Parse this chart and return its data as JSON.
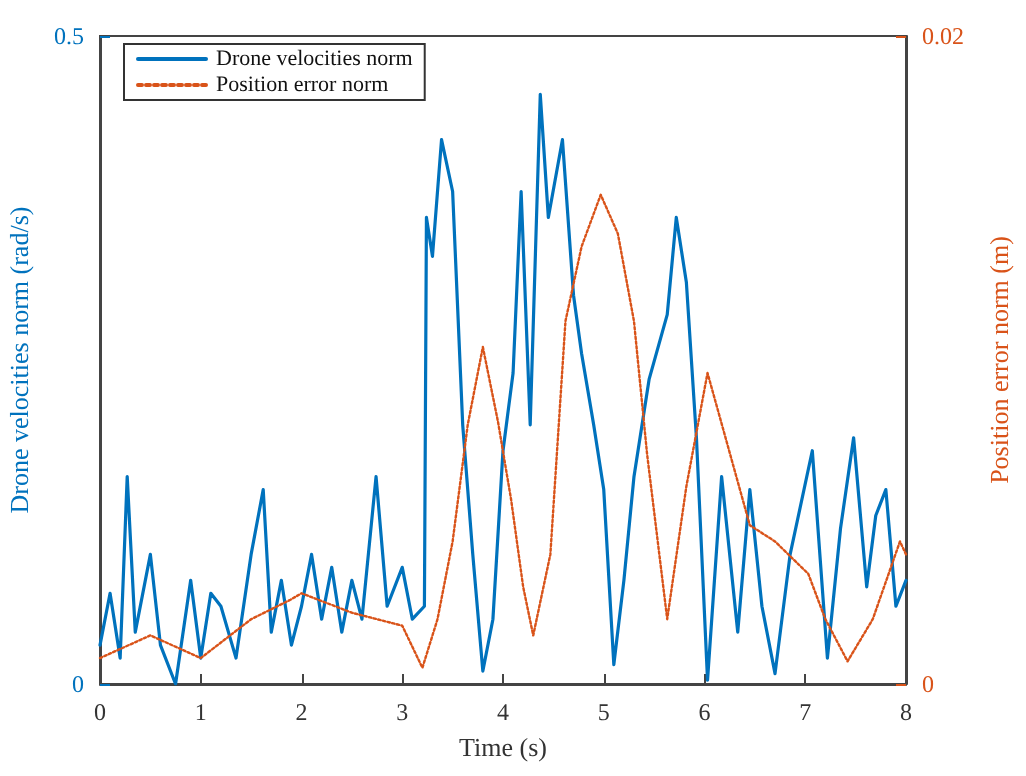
{
  "chart_data": {
    "type": "line",
    "xlabel": "Time (s)",
    "ylabel": "Drone velocities norm (rad/s)",
    "y2label": "Position error norm (m)",
    "xlim": [
      0,
      8
    ],
    "xticks": [
      0,
      1,
      2,
      3,
      4,
      5,
      6,
      7,
      8
    ],
    "ylim": [
      0,
      0.5
    ],
    "yticks": [
      0,
      0.5
    ],
    "y2lim": [
      0,
      0.02
    ],
    "y2ticks": [
      0,
      0.02
    ],
    "grid": false,
    "legend": "top left",
    "marker": "none",
    "series": [
      {
        "name": "Drone velocities norm",
        "color": "#0072bd",
        "line_style": "solid",
        "x": [
          0,
          0.1,
          0.2,
          0.27,
          0.35,
          0.5,
          0.6,
          0.75,
          0.9,
          1.0,
          1.1,
          1.2,
          1.35,
          1.5,
          1.62,
          1.7,
          1.8,
          1.9,
          2.0,
          2.1,
          2.2,
          2.3,
          2.4,
          2.5,
          2.6,
          2.74,
          2.85,
          3.0,
          3.1,
          3.22,
          3.24,
          3.3,
          3.39,
          3.5,
          3.6,
          3.7,
          3.8,
          3.9,
          4.0,
          4.1,
          4.18,
          4.27,
          4.37,
          4.45,
          4.59,
          4.7,
          4.78,
          4.9,
          5.0,
          5.1,
          5.2,
          5.3,
          5.45,
          5.63,
          5.72,
          5.82,
          5.92,
          6.03,
          6.17,
          6.33,
          6.45,
          6.57,
          6.7,
          6.85,
          7.07,
          7.22,
          7.35,
          7.48,
          7.61,
          7.7,
          7.8,
          7.9,
          8.0
        ],
        "values": [
          0.03,
          0.07,
          0.02,
          0.16,
          0.04,
          0.1,
          0.03,
          0.0,
          0.08,
          0.02,
          0.07,
          0.06,
          0.02,
          0.1,
          0.15,
          0.04,
          0.08,
          0.03,
          0.06,
          0.1,
          0.05,
          0.09,
          0.04,
          0.08,
          0.05,
          0.16,
          0.06,
          0.09,
          0.05,
          0.06,
          0.36,
          0.33,
          0.42,
          0.38,
          0.2,
          0.1,
          0.01,
          0.05,
          0.18,
          0.24,
          0.38,
          0.2,
          0.455,
          0.36,
          0.42,
          0.3,
          0.255,
          0.2,
          0.15,
          0.015,
          0.08,
          0.16,
          0.235,
          0.285,
          0.36,
          0.31,
          0.19,
          0.003,
          0.16,
          0.04,
          0.15,
          0.06,
          0.008,
          0.1,
          0.18,
          0.02,
          0.12,
          0.19,
          0.075,
          0.13,
          0.15,
          0.06,
          0.08
        ]
      },
      {
        "name": "Position error norm",
        "color": "#d95319",
        "line_style": "dotted",
        "axis": "y2",
        "x": [
          0,
          0.5,
          1.0,
          1.5,
          1.89,
          2.0,
          2.5,
          3.0,
          3.2,
          3.35,
          3.5,
          3.65,
          3.8,
          3.95,
          4.08,
          4.2,
          4.3,
          4.47,
          4.62,
          4.78,
          4.97,
          5.14,
          5.3,
          5.43,
          5.63,
          5.82,
          6.03,
          6.2,
          6.45,
          6.7,
          7.03,
          7.2,
          7.42,
          7.67,
          7.94,
          8.0
        ],
        "values": [
          0.0008,
          0.0015,
          0.0008,
          0.002,
          0.0026,
          0.0028,
          0.0022,
          0.0018,
          0.0005,
          0.002,
          0.0044,
          0.008,
          0.0104,
          0.0081,
          0.0057,
          0.003,
          0.0015,
          0.004,
          0.0112,
          0.0135,
          0.0151,
          0.0139,
          0.0112,
          0.0071,
          0.002,
          0.0061,
          0.0096,
          0.0077,
          0.0049,
          0.0044,
          0.0034,
          0.002,
          0.0007,
          0.002,
          0.0044,
          0.004
        ]
      }
    ]
  }
}
